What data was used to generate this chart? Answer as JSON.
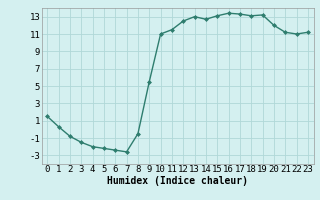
{
  "x": [
    0,
    1,
    2,
    3,
    4,
    5,
    6,
    7,
    8,
    9,
    10,
    11,
    12,
    13,
    14,
    15,
    16,
    17,
    18,
    19,
    20,
    21,
    22,
    23
  ],
  "y": [
    1.5,
    0.3,
    -0.8,
    -1.5,
    -2.0,
    -2.2,
    -2.4,
    -2.6,
    -0.5,
    5.5,
    11.0,
    11.5,
    12.5,
    13.0,
    12.7,
    13.1,
    13.4,
    13.3,
    13.1,
    13.2,
    12.0,
    11.2,
    11.0,
    11.2
  ],
  "line_color": "#2e7d6e",
  "marker": "D",
  "marker_size": 2.0,
  "bg_color": "#d4f0f0",
  "grid_color": "#b0d8d8",
  "xlabel": "Humidex (Indice chaleur)",
  "xlim": [
    -0.5,
    23.5
  ],
  "ylim": [
    -4,
    14
  ],
  "yticks": [
    -3,
    -1,
    1,
    3,
    5,
    7,
    9,
    11,
    13
  ],
  "xticks": [
    0,
    1,
    2,
    3,
    4,
    5,
    6,
    7,
    8,
    9,
    10,
    11,
    12,
    13,
    14,
    15,
    16,
    17,
    18,
    19,
    20,
    21,
    22,
    23
  ],
  "xlabel_fontsize": 7,
  "tick_fontsize": 6.5,
  "line_width": 1.0
}
